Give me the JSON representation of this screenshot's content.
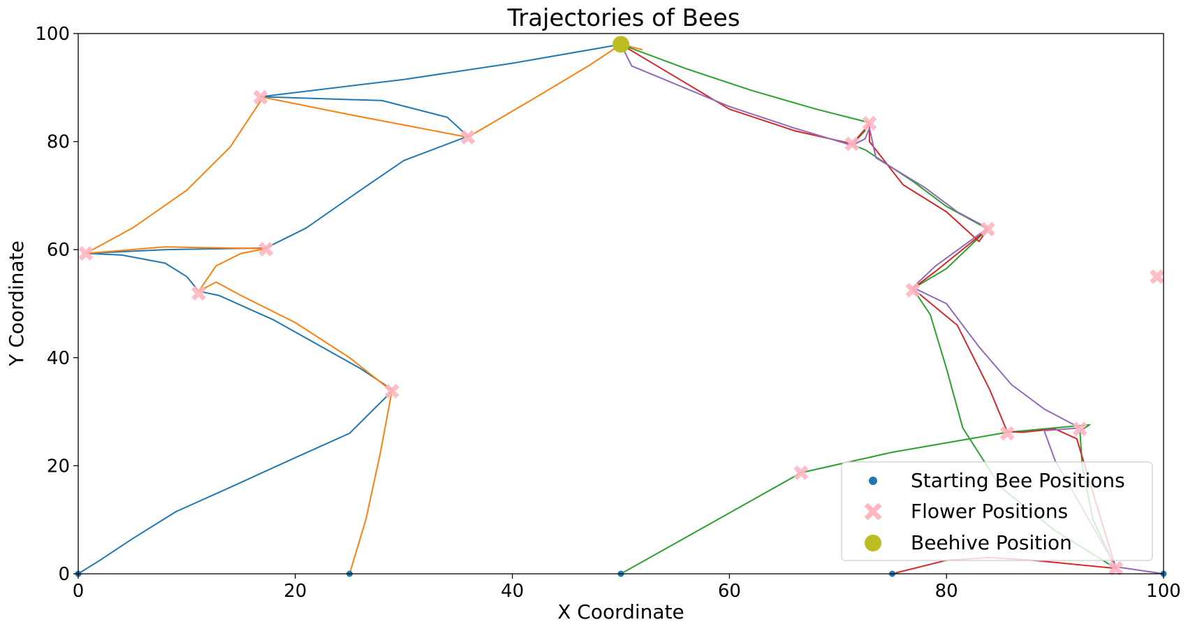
{
  "chart_data": {
    "type": "line",
    "title": "Trajectories of Bees",
    "xlabel": "X Coordinate",
    "ylabel": "Y Coordinate",
    "xlim": [
      0,
      100
    ],
    "ylim": [
      0,
      100
    ],
    "xticks": [
      0,
      20,
      40,
      60,
      80,
      100
    ],
    "yticks": [
      0,
      20,
      40,
      60,
      80,
      100
    ],
    "grid": false,
    "legend_position": "bottom-right",
    "legend": [
      {
        "label": "Starting Bee Positions",
        "marker": "dot",
        "color": "#1f77b4"
      },
      {
        "label": "Flower Positions",
        "marker": "x",
        "color": "#ffb6c1"
      },
      {
        "label": "Beehive Position",
        "marker": "circle",
        "color": "#bcbd22"
      }
    ],
    "starting_bee_positions": [
      [
        0,
        0
      ],
      [
        25,
        0
      ],
      [
        50,
        0
      ],
      [
        75,
        0
      ],
      [
        100,
        0
      ]
    ],
    "flower_positions": [
      [
        0.7,
        59.3
      ],
      [
        11.1,
        51.9
      ],
      [
        16.8,
        88.2
      ],
      [
        17.3,
        60.1
      ],
      [
        28.9,
        33.8
      ],
      [
        35.9,
        80.8
      ],
      [
        66.6,
        18.7
      ],
      [
        71.3,
        79.6
      ],
      [
        72.9,
        83.4
      ],
      [
        76.9,
        52.5
      ],
      [
        83.8,
        63.8
      ],
      [
        85.6,
        26.0
      ],
      [
        92.3,
        26.8
      ],
      [
        95.6,
        1.0
      ],
      [
        99.4,
        55.0
      ]
    ],
    "beehive_position": [
      50.0,
      98.0
    ],
    "series": [
      {
        "color": "#1f77b4",
        "points": [
          [
            0,
            0
          ],
          [
            2,
            2.5
          ],
          [
            5,
            6.5
          ],
          [
            9,
            11.5
          ],
          [
            14,
            16
          ],
          [
            20,
            21.5
          ],
          [
            25,
            26
          ],
          [
            29,
            34
          ],
          [
            26,
            38
          ],
          [
            22,
            42.5
          ],
          [
            18,
            47
          ],
          [
            13,
            51.5
          ],
          [
            11.1,
            52.3
          ],
          [
            10,
            55
          ],
          [
            8,
            57.5
          ],
          [
            4,
            59
          ],
          [
            0.7,
            59.3
          ],
          [
            8,
            60
          ],
          [
            17.3,
            60.3
          ],
          [
            21,
            64
          ],
          [
            26,
            71
          ],
          [
            30,
            76.5
          ],
          [
            35.9,
            81
          ],
          [
            34,
            84.5
          ],
          [
            28,
            87.6
          ],
          [
            16.8,
            88.3
          ],
          [
            30,
            91.5
          ],
          [
            40,
            94.5
          ],
          [
            50,
            98
          ]
        ]
      },
      {
        "color": "#ff7f0e",
        "points": [
          [
            25,
            0
          ],
          [
            26.5,
            10
          ],
          [
            27.8,
            22
          ],
          [
            28.9,
            33.8
          ],
          [
            25,
            40
          ],
          [
            20,
            46.5
          ],
          [
            15,
            51.5
          ],
          [
            12.7,
            54
          ],
          [
            11.1,
            52.3
          ],
          [
            12.7,
            57
          ],
          [
            15,
            59.3
          ],
          [
            17.3,
            60.2
          ],
          [
            8,
            60.5
          ],
          [
            0.7,
            59.3
          ],
          [
            5,
            64
          ],
          [
            10,
            71
          ],
          [
            14,
            79
          ],
          [
            16.8,
            87.5
          ],
          [
            16.8,
            88.3
          ],
          [
            25,
            85
          ],
          [
            35.9,
            80.8
          ],
          [
            42,
            88
          ],
          [
            47,
            94
          ],
          [
            50,
            98
          ],
          [
            52,
            97
          ]
        ]
      },
      {
        "color": "#2ca02c",
        "points": [
          [
            50,
            0
          ],
          [
            58,
            9
          ],
          [
            66.6,
            18.7
          ],
          [
            75,
            22.5
          ],
          [
            85.6,
            26.2
          ],
          [
            93.2,
            27.6
          ],
          [
            92.3,
            26.4
          ],
          [
            92.5,
            20
          ],
          [
            93.5,
            10
          ],
          [
            95.6,
            1
          ],
          [
            90,
            8
          ],
          [
            85,
            16
          ],
          [
            81.5,
            27
          ],
          [
            80,
            38
          ],
          [
            78.5,
            48
          ],
          [
            76.9,
            52.8
          ],
          [
            80,
            56.5
          ],
          [
            83.8,
            63.8
          ],
          [
            80,
            68
          ],
          [
            77,
            72.5
          ],
          [
            72.5,
            78.5
          ],
          [
            71.3,
            79.4
          ],
          [
            72.5,
            82
          ],
          [
            72.9,
            83.5
          ],
          [
            68,
            86
          ],
          [
            62,
            89.5
          ],
          [
            56,
            93.5
          ],
          [
            50,
            98
          ]
        ]
      },
      {
        "color": "#d62728",
        "points": [
          [
            75,
            0
          ],
          [
            80,
            2.5
          ],
          [
            84,
            3
          ],
          [
            88,
            2.5
          ],
          [
            95.6,
            1
          ],
          [
            92,
            25
          ],
          [
            90,
            26.8
          ],
          [
            87,
            26.2
          ],
          [
            85.6,
            26.3
          ],
          [
            84,
            34
          ],
          [
            81,
            46
          ],
          [
            76.9,
            52.8
          ],
          [
            79,
            56
          ],
          [
            83.8,
            63.8
          ],
          [
            83,
            61.5
          ],
          [
            80,
            67
          ],
          [
            76,
            72
          ],
          [
            72.9,
            80
          ],
          [
            72.9,
            83.2
          ],
          [
            71.3,
            79.6
          ],
          [
            66,
            82
          ],
          [
            60,
            86
          ],
          [
            55,
            92
          ],
          [
            50,
            98
          ]
        ]
      },
      {
        "color": "#9467bd",
        "points": [
          [
            100,
            0
          ],
          [
            95.6,
            1.3
          ],
          [
            90,
            21
          ],
          [
            89,
            26.5
          ],
          [
            92.3,
            27
          ],
          [
            89,
            30.5
          ],
          [
            86,
            35
          ],
          [
            83,
            42
          ],
          [
            80,
            50
          ],
          [
            76.9,
            53
          ],
          [
            79,
            57
          ],
          [
            83.8,
            64
          ],
          [
            81,
            67
          ],
          [
            78,
            71.5
          ],
          [
            73.5,
            77
          ],
          [
            72.9,
            82.5
          ],
          [
            72.5,
            80.5
          ],
          [
            71.3,
            79.3
          ],
          [
            66,
            82.5
          ],
          [
            60,
            86.5
          ],
          [
            54,
            91.5
          ],
          [
            51,
            94
          ],
          [
            50,
            98
          ]
        ]
      }
    ]
  }
}
